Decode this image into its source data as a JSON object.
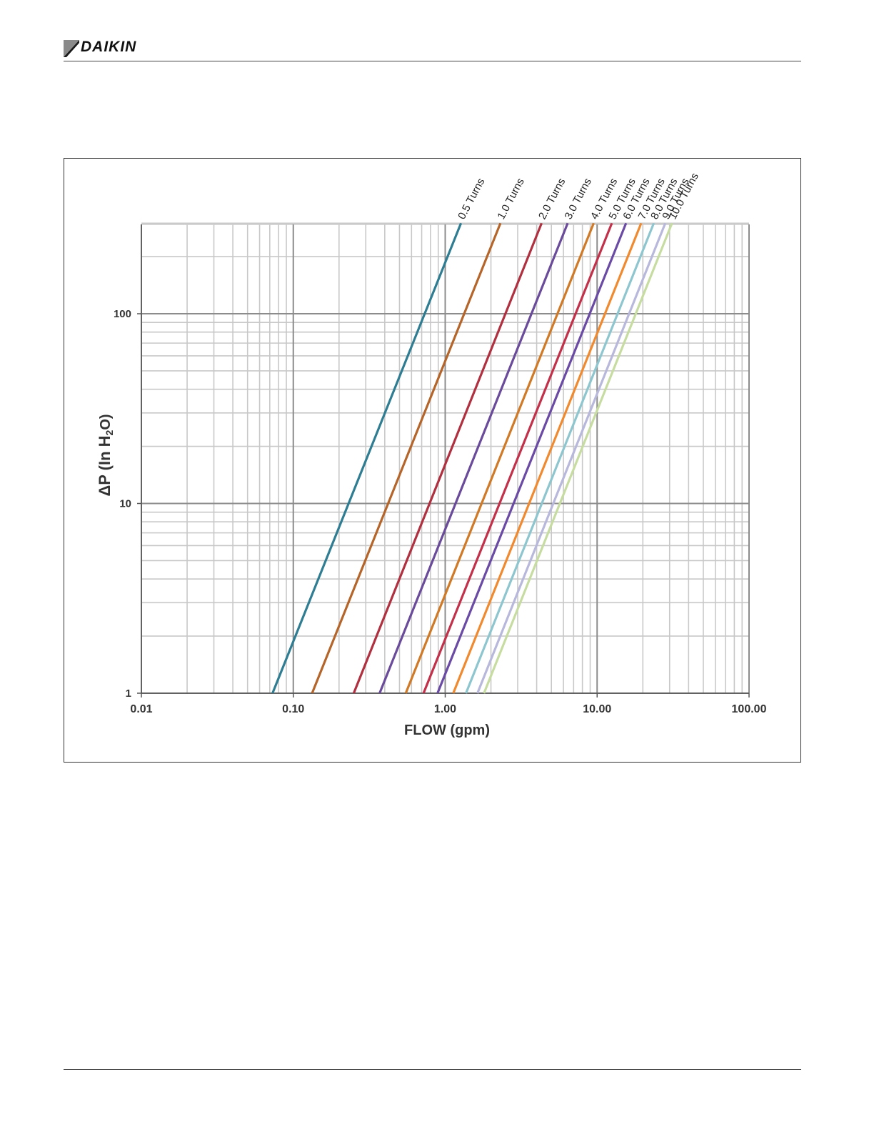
{
  "header": {
    "brand": "DAIKIN"
  },
  "chart_data": {
    "type": "line",
    "title": "",
    "xlabel": "FLOW (gpm)",
    "ylabel_main": "ΔP (In H",
    "ylabel_sub": "2",
    "ylabel_end": "O)",
    "x_scale": "log",
    "y_scale": "log",
    "xlim": [
      0.01,
      100
    ],
    "ylim": [
      1,
      300
    ],
    "x_ticks": [
      "0.01",
      "0.10",
      "1.00",
      "10.00",
      "100.00"
    ],
    "y_ticks": [
      "1",
      "10",
      "100"
    ],
    "grid": true,
    "series": [
      {
        "name": "0.5 Turns",
        "color": "#2e7d93",
        "x": [
          0.073,
          1.27
        ],
        "y": [
          1,
          300
        ]
      },
      {
        "name": "1.0 Turns",
        "color": "#b5652a",
        "x": [
          0.133,
          2.31
        ],
        "y": [
          1,
          300
        ]
      },
      {
        "name": "2.0 Turns",
        "color": "#b03040",
        "x": [
          0.25,
          4.31
        ],
        "y": [
          1,
          300
        ]
      },
      {
        "name": "3.0 Turns",
        "color": "#6a4a9a",
        "x": [
          0.37,
          6.4
        ],
        "y": [
          1,
          300
        ]
      },
      {
        "name": "4.0 Turns",
        "color": "#d07a28",
        "x": [
          0.55,
          9.49
        ],
        "y": [
          1,
          300
        ]
      },
      {
        "name": "5.0 Turns",
        "color": "#c2304a",
        "x": [
          0.72,
          12.5
        ],
        "y": [
          1,
          300
        ]
      },
      {
        "name": "6.0 Turns",
        "color": "#6a4aa5",
        "x": [
          0.89,
          15.5
        ],
        "y": [
          1,
          300
        ]
      },
      {
        "name": "7.0 Turns",
        "color": "#f08a30",
        "x": [
          1.13,
          19.5
        ],
        "y": [
          1,
          300
        ]
      },
      {
        "name": "8.0 Turns",
        "color": "#8ec6d0",
        "x": [
          1.37,
          23.6
        ],
        "y": [
          1,
          300
        ]
      },
      {
        "name": "9.0 Turns",
        "color": "#b8b8dc",
        "x": [
          1.63,
          28.1
        ],
        "y": [
          1,
          300
        ]
      },
      {
        "name": "10.0 Turns",
        "color": "#c6dca0",
        "x": [
          1.8,
          31.1
        ],
        "y": [
          1,
          300
        ]
      }
    ]
  }
}
